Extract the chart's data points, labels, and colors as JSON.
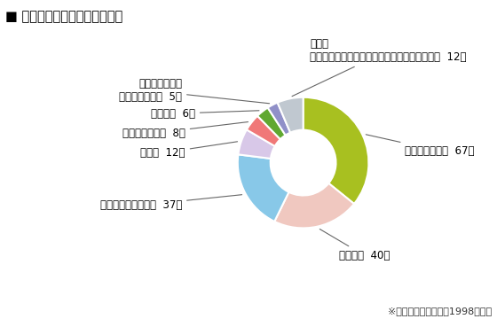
{
  "title": "■ 商品別「低温やけど」報告数",
  "footnote": "※国民生活センター　1998年調査",
  "slices": [
    {
      "label": "使い捨てカイロ  67件",
      "value": 67,
      "color": "#a8c020"
    },
    {
      "label": "湯たんぽ  40件",
      "value": 40,
      "color": "#f0c8c0"
    },
    {
      "label": "電気あんか・あんか  37件",
      "value": 37,
      "color": "#88c8e8"
    },
    {
      "label": "こたつ  12件",
      "value": 12,
      "color": "#d8c8e8"
    },
    {
      "label": "電気カーペット  8件",
      "value": 8,
      "color": "#f07878"
    },
    {
      "label": "電気毛布  6件",
      "value": 6,
      "color": "#60a830"
    },
    {
      "label": "ファンヒーター\n（石油・ガス）  5件",
      "value": 5,
      "color": "#9090c8"
    },
    {
      "label": "その他\n（足温器、バス・鉄道の座席、保温便座など）  12件",
      "value": 12,
      "color": "#c0c8d0"
    }
  ],
  "background_color": "#ffffff",
  "title_fontsize": 10.5,
  "label_fontsize": 8.5,
  "footnote_fontsize": 8
}
